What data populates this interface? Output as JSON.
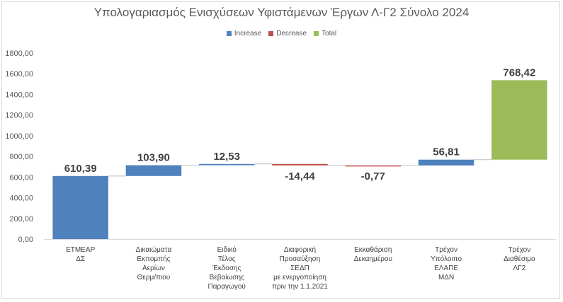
{
  "chart_data": {
    "type": "waterfall",
    "title": "Υπολογαριασμός Ενισχύσεων Υφιστάμενων Έργων Λ-Γ2 Σύνολο 2024",
    "legend": [
      {
        "name": "Increase",
        "color": "#4f81bd"
      },
      {
        "name": "Decrease",
        "color": "#c0504d"
      },
      {
        "name": "Total",
        "color": "#9bbb59"
      }
    ],
    "legend_position": "top",
    "ylim": [
      0,
      1800
    ],
    "yticks": [
      "0,00",
      "200,00",
      "400,00",
      "600,00",
      "800,00",
      "1000,00",
      "1200,00",
      "1400,00",
      "1600,00",
      "1800,00"
    ],
    "grid": false,
    "categories": [
      "ΕΤΜΕΑΡ\nΔΣ",
      "Δικαιώματα\nΕκπομπής\nΑερίων\nΘερμ/πιου",
      "Ειδικό\nΤέλος\nΈκδοσης\nΒεβαίωσης\nΠαραγωγού",
      "Διαφορική\nΠροσαύξηση\nΣΕΔΠ\nμε ενεργοποίηση\nπριν την 1.1.2021",
      "Εκκαθάριση\nΔεκαημέρου",
      "Τρέχον\nΥπόλοιπο\nΕΛΑΠΕ\nΜΔΝ",
      "Τρέχον\nΔιαθέσιμο\nΛΓ2"
    ],
    "values": [
      610.39,
      103.9,
      12.53,
      -14.44,
      -0.77,
      56.81,
      768.42
    ],
    "labels": [
      "610,39",
      "103,90",
      "12,53",
      "-14,44",
      "-0,77",
      "56,81",
      "768,42"
    ],
    "kinds": [
      "increase",
      "increase",
      "increase",
      "decrease",
      "decrease",
      "increase",
      "total"
    ],
    "total_bar_range": [
      768.42,
      1537.27
    ]
  }
}
